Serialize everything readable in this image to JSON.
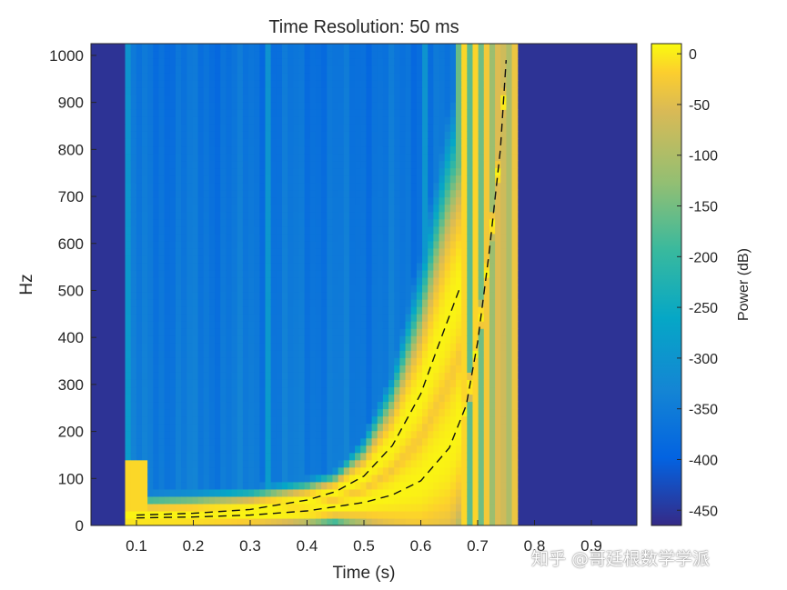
{
  "chart_data": {
    "type": "heatmap",
    "title": "Time Resolution: 50 ms",
    "xlabel": "Time (s)",
    "ylabel": "Hz",
    "xlim": [
      0.02,
      0.98
    ],
    "ylim": [
      0,
      1025
    ],
    "x_ticks": [
      0.1,
      0.2,
      0.3,
      0.4,
      0.5,
      0.6,
      0.7,
      0.8,
      0.9
    ],
    "x_tick_labels": [
      "0.1",
      "0.2",
      "0.3",
      "0.4",
      "0.5",
      "0.6",
      "0.7",
      "0.8",
      "0.9"
    ],
    "y_ticks": [
      0,
      100,
      200,
      300,
      400,
      500,
      600,
      700,
      800,
      900,
      1000
    ],
    "y_tick_labels": [
      "0",
      "100",
      "200",
      "300",
      "400",
      "500",
      "600",
      "700",
      "800",
      "900",
      "1000"
    ],
    "signal_time_range": [
      0.08,
      0.77
    ],
    "colorbar": {
      "label": "Power (dB)",
      "range": [
        -465,
        10
      ],
      "ticks": [
        0,
        -50,
        -100,
        -150,
        -200,
        -250,
        -300,
        -350,
        -400,
        -450
      ],
      "tick_labels": [
        "0",
        "-50",
        "-100",
        "-150",
        "-200",
        "-250",
        "-300",
        "-350",
        "-400",
        "-450"
      ],
      "colormap": "parula"
    },
    "series": [
      {
        "style": "dashed",
        "x": [
          0.1,
          0.2,
          0.3,
          0.4,
          0.5,
          0.55,
          0.6,
          0.65,
          0.68,
          0.7,
          0.72,
          0.74,
          0.75
        ],
        "y": [
          16,
          18,
          22,
          31,
          49,
          65,
          95,
          165,
          256,
          390,
          578,
          800,
          990
        ]
      },
      {
        "style": "dashed",
        "x": [
          0.1,
          0.2,
          0.3,
          0.4,
          0.45,
          0.5,
          0.55,
          0.6,
          0.63,
          0.65,
          0.67
        ],
        "y": [
          22,
          26,
          34,
          54,
          72,
          105,
          170,
          280,
          380,
          445,
          510
        ]
      }
    ]
  },
  "watermark": "知乎 @哥廷根数学学派"
}
